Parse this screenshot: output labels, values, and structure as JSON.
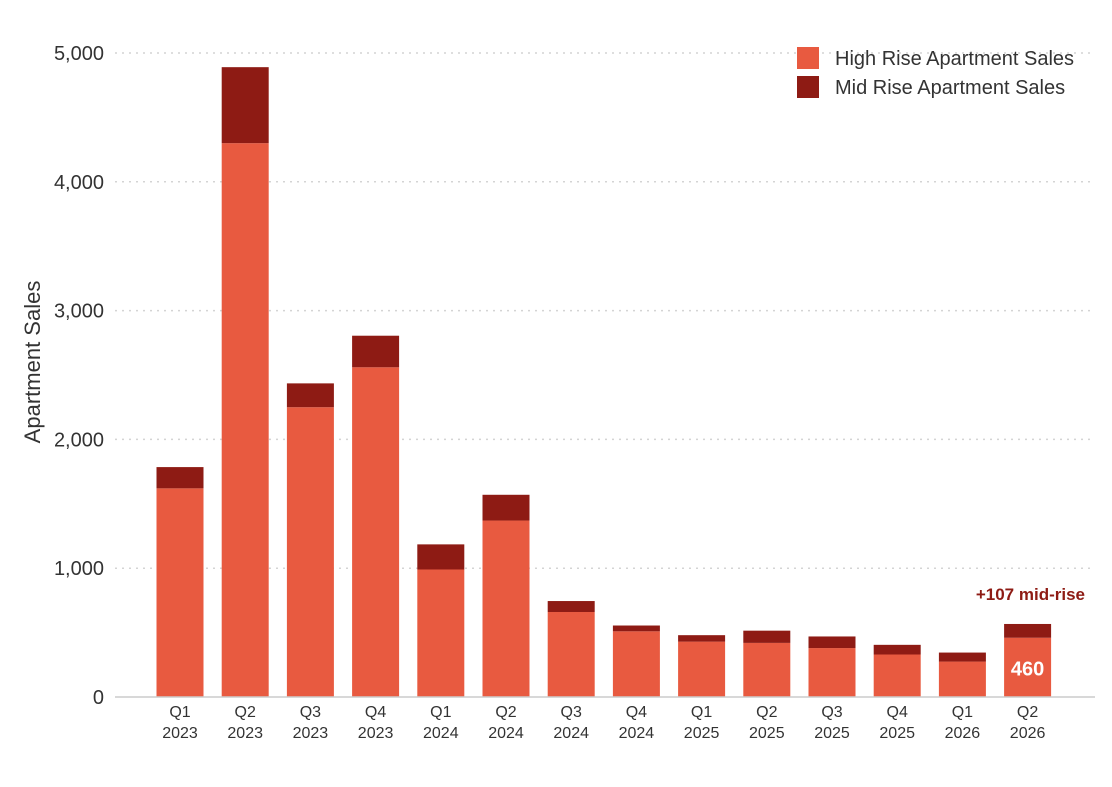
{
  "chart_data": {
    "type": "bar",
    "stacked": true,
    "title": "",
    "xlabel": "",
    "ylabel": "Apartment Sales",
    "ylim": [
      0,
      5000
    ],
    "yticks": [
      0,
      1000,
      2000,
      3000,
      4000,
      5000
    ],
    "ytick_labels": [
      "0",
      "1,000",
      "2,000",
      "3,000",
      "4,000",
      "5,000"
    ],
    "grid": "horizontal dotted",
    "legend_position": "top-right",
    "categories": [
      [
        "Q1",
        "2023"
      ],
      [
        "Q2",
        "2023"
      ],
      [
        "Q3",
        "2023"
      ],
      [
        "Q4",
        "2023"
      ],
      [
        "Q1",
        "2024"
      ],
      [
        "Q2",
        "2024"
      ],
      [
        "Q3",
        "2024"
      ],
      [
        "Q4",
        "2024"
      ],
      [
        "Q1",
        "2025"
      ],
      [
        "Q2",
        "2025"
      ],
      [
        "Q3",
        "2025"
      ],
      [
        "Q4",
        "2025"
      ],
      [
        "Q1",
        "2026"
      ],
      [
        "Q2",
        "2026"
      ]
    ],
    "series": [
      {
        "name": "High Rise Apartment Sales",
        "color": "#E85A40",
        "values": [
          1620,
          4300,
          2250,
          2560,
          990,
          1370,
          660,
          510,
          430,
          420,
          380,
          330,
          275,
          460
        ]
      },
      {
        "name": "Mid Rise Apartment Sales",
        "color": "#8E1B14",
        "values": [
          165,
          590,
          185,
          245,
          195,
          200,
          85,
          45,
          50,
          95,
          90,
          75,
          70,
          107
        ]
      }
    ],
    "annotations": [
      {
        "category_index": 13,
        "text": "+107 mid-rise",
        "color": "#8E1B14",
        "placement": "above-bar"
      },
      {
        "category_index": 13,
        "text": "460",
        "color": "#ffffff",
        "placement": "inside-bottom-segment"
      }
    ]
  }
}
